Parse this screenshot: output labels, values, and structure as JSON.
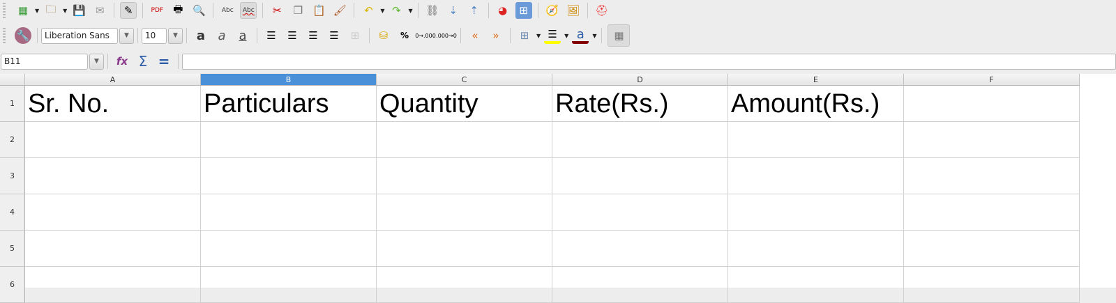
{
  "toolbar1": {
    "icons": [
      "new-spreadsheet-icon",
      "open-folder-icon",
      "save-icon",
      "email-icon",
      "edit-mode-icon",
      "export-pdf-icon",
      "print-icon",
      "print-preview-icon",
      "spellcheck-icon",
      "autospellcheck-icon",
      "cut-icon",
      "copy-icon",
      "paste-icon",
      "clone-formatting-icon",
      "undo-icon",
      "redo-icon",
      "hyperlink-icon",
      "sort-ascending-icon",
      "sort-descending-icon",
      "chart-icon",
      "pivot-table-icon",
      "navigator-icon",
      "gallery-icon",
      "help-icon"
    ]
  },
  "toolbar2": {
    "font_name": "Liberation Sans",
    "font_size": "10",
    "percent_label": "%",
    "highlight_color": "#ffff00",
    "font_color": "#800000"
  },
  "formula_bar": {
    "cell_ref": "B11",
    "formula": ""
  },
  "columns": [
    "A",
    "B",
    "C",
    "D",
    "E",
    "F"
  ],
  "selected_column": "B",
  "rows": [
    "1",
    "2",
    "3",
    "4",
    "5",
    "6"
  ],
  "cells": {
    "A1": "Sr. No.",
    "B1": "Particulars",
    "C1": "Quantity",
    "D1": "Rate(Rs.)",
    "E1": "Amount(Rs.)"
  }
}
